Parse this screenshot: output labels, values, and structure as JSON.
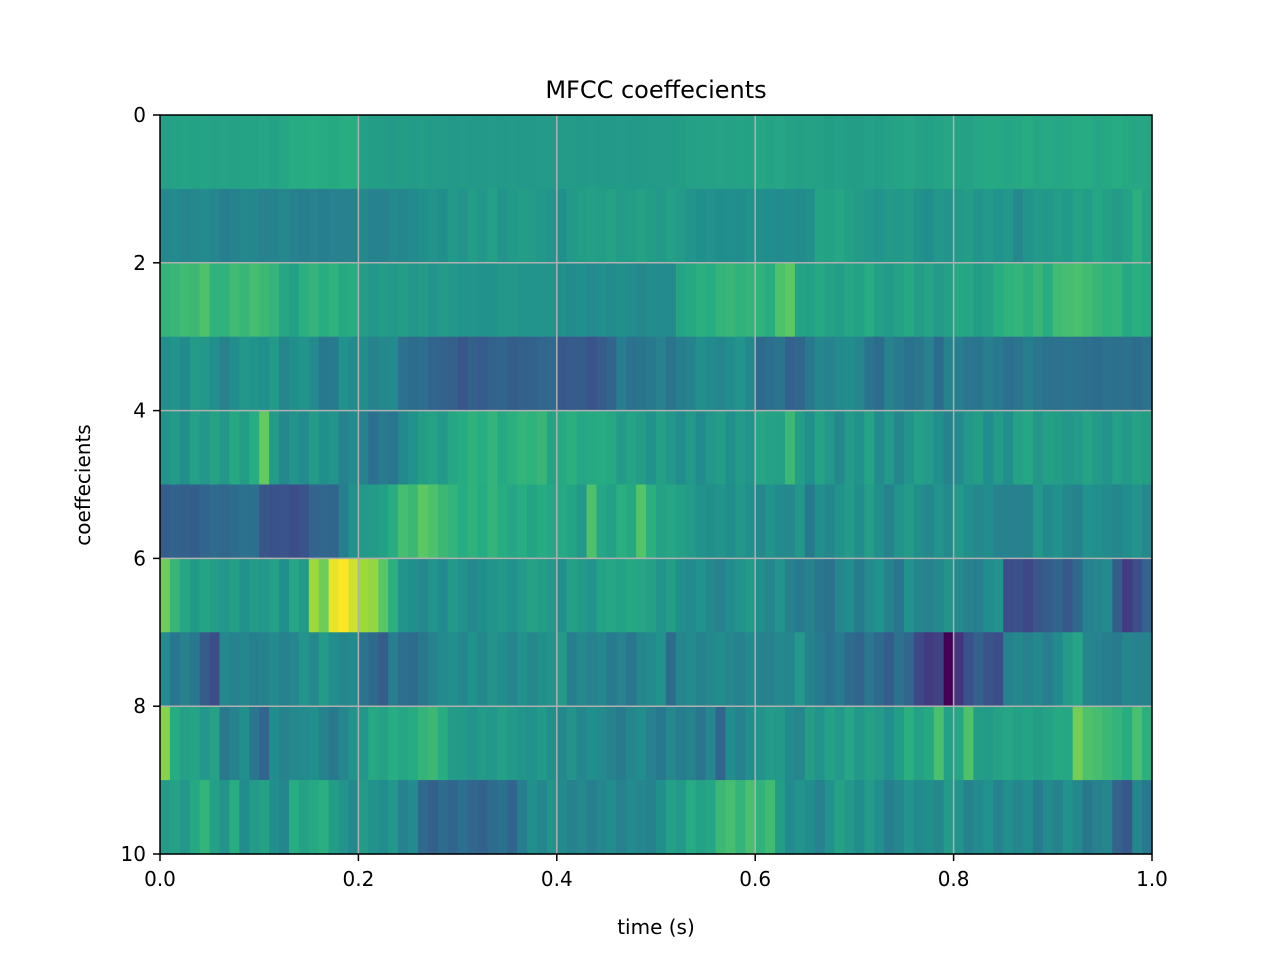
{
  "chart_data": {
    "type": "heatmap",
    "title": "MFCC coeffecients",
    "xlabel": "time (s)",
    "ylabel": "coeffecients",
    "xlim": [
      0.0,
      1.0
    ],
    "ylim": [
      10,
      0
    ],
    "x_ticks": [
      "0.0",
      "0.2",
      "0.4",
      "0.6",
      "0.8",
      "1.0"
    ],
    "y_ticks": [
      "0",
      "2",
      "4",
      "6",
      "8",
      "10"
    ],
    "grid": true,
    "colormap": "viridis",
    "value_range": [
      0,
      1
    ],
    "rows": [
      [
        0.57,
        0.58,
        0.59,
        0.58,
        0.59,
        0.58,
        0.59,
        0.58,
        0.59,
        0.59,
        0.6,
        0.58,
        0.6,
        0.62,
        0.62,
        0.63,
        0.62,
        0.61,
        0.63,
        0.63,
        0.57,
        0.56,
        0.56,
        0.55,
        0.56,
        0.55,
        0.56,
        0.55,
        0.55,
        0.54,
        0.55,
        0.54,
        0.54,
        0.55,
        0.54,
        0.55,
        0.54,
        0.54,
        0.55,
        0.55,
        0.55,
        0.55,
        0.54,
        0.55,
        0.54,
        0.54,
        0.55,
        0.54,
        0.54,
        0.55,
        0.55,
        0.55,
        0.56,
        0.57,
        0.58,
        0.58,
        0.59,
        0.58,
        0.59,
        0.58,
        0.6,
        0.59,
        0.6,
        0.58,
        0.57,
        0.58,
        0.57,
        0.56,
        0.57,
        0.56,
        0.56,
        0.57,
        0.56,
        0.58,
        0.59,
        0.6,
        0.58,
        0.57,
        0.59,
        0.6,
        0.58,
        0.58,
        0.6,
        0.61,
        0.61,
        0.6,
        0.61,
        0.62,
        0.6,
        0.61,
        0.6,
        0.61,
        0.62,
        0.62,
        0.6,
        0.61,
        0.62,
        0.61,
        0.6,
        0.6
      ],
      [
        0.47,
        0.48,
        0.46,
        0.47,
        0.48,
        0.46,
        0.43,
        0.45,
        0.47,
        0.46,
        0.44,
        0.45,
        0.47,
        0.44,
        0.43,
        0.44,
        0.43,
        0.44,
        0.44,
        0.45,
        0.47,
        0.44,
        0.45,
        0.47,
        0.46,
        0.48,
        0.5,
        0.52,
        0.5,
        0.54,
        0.52,
        0.56,
        0.53,
        0.57,
        0.52,
        0.54,
        0.56,
        0.55,
        0.53,
        0.52,
        0.5,
        0.54,
        0.56,
        0.57,
        0.56,
        0.58,
        0.55,
        0.56,
        0.58,
        0.56,
        0.54,
        0.57,
        0.55,
        0.52,
        0.5,
        0.51,
        0.49,
        0.5,
        0.49,
        0.51,
        0.5,
        0.49,
        0.48,
        0.49,
        0.48,
        0.5,
        0.59,
        0.58,
        0.6,
        0.57,
        0.55,
        0.53,
        0.52,
        0.54,
        0.53,
        0.55,
        0.51,
        0.49,
        0.53,
        0.52,
        0.54,
        0.56,
        0.52,
        0.54,
        0.51,
        0.53,
        0.47,
        0.52,
        0.54,
        0.53,
        0.56,
        0.54,
        0.58,
        0.56,
        0.6,
        0.57,
        0.55,
        0.58,
        0.64,
        0.59
      ],
      [
        0.66,
        0.67,
        0.69,
        0.68,
        0.72,
        0.65,
        0.65,
        0.69,
        0.67,
        0.7,
        0.68,
        0.66,
        0.6,
        0.57,
        0.64,
        0.66,
        0.63,
        0.65,
        0.61,
        0.63,
        0.56,
        0.53,
        0.56,
        0.54,
        0.56,
        0.53,
        0.55,
        0.52,
        0.55,
        0.53,
        0.52,
        0.52,
        0.51,
        0.51,
        0.53,
        0.53,
        0.52,
        0.52,
        0.52,
        0.52,
        0.5,
        0.48,
        0.5,
        0.48,
        0.5,
        0.48,
        0.5,
        0.49,
        0.47,
        0.49,
        0.48,
        0.48,
        0.59,
        0.61,
        0.64,
        0.63,
        0.66,
        0.67,
        0.65,
        0.66,
        0.65,
        0.63,
        0.72,
        0.75,
        0.59,
        0.57,
        0.61,
        0.58,
        0.56,
        0.6,
        0.58,
        0.62,
        0.57,
        0.55,
        0.58,
        0.61,
        0.56,
        0.59,
        0.55,
        0.57,
        0.61,
        0.6,
        0.56,
        0.58,
        0.63,
        0.65,
        0.66,
        0.64,
        0.67,
        0.63,
        0.69,
        0.7,
        0.71,
        0.69,
        0.67,
        0.65,
        0.66,
        0.61,
        0.64,
        0.62
      ],
      [
        0.5,
        0.52,
        0.48,
        0.55,
        0.53,
        0.5,
        0.45,
        0.49,
        0.53,
        0.51,
        0.5,
        0.54,
        0.46,
        0.5,
        0.52,
        0.48,
        0.41,
        0.42,
        0.51,
        0.48,
        0.49,
        0.45,
        0.47,
        0.48,
        0.38,
        0.36,
        0.37,
        0.33,
        0.32,
        0.31,
        0.27,
        0.31,
        0.29,
        0.32,
        0.33,
        0.3,
        0.31,
        0.32,
        0.34,
        0.35,
        0.28,
        0.29,
        0.3,
        0.26,
        0.29,
        0.33,
        0.43,
        0.38,
        0.39,
        0.41,
        0.44,
        0.39,
        0.43,
        0.45,
        0.5,
        0.48,
        0.46,
        0.49,
        0.52,
        0.47,
        0.35,
        0.37,
        0.39,
        0.32,
        0.34,
        0.41,
        0.46,
        0.44,
        0.48,
        0.49,
        0.46,
        0.39,
        0.36,
        0.45,
        0.42,
        0.38,
        0.4,
        0.44,
        0.36,
        0.45,
        0.43,
        0.4,
        0.39,
        0.43,
        0.41,
        0.37,
        0.39,
        0.43,
        0.4,
        0.38,
        0.38,
        0.39,
        0.38,
        0.37,
        0.36,
        0.38,
        0.37,
        0.38,
        0.36,
        0.38
      ],
      [
        0.52,
        0.55,
        0.5,
        0.57,
        0.53,
        0.58,
        0.53,
        0.61,
        0.56,
        0.63,
        0.76,
        0.55,
        0.47,
        0.52,
        0.48,
        0.55,
        0.5,
        0.52,
        0.45,
        0.48,
        0.44,
        0.37,
        0.42,
        0.4,
        0.47,
        0.51,
        0.56,
        0.58,
        0.54,
        0.6,
        0.62,
        0.65,
        0.63,
        0.66,
        0.61,
        0.64,
        0.66,
        0.65,
        0.67,
        0.59,
        0.61,
        0.64,
        0.6,
        0.61,
        0.62,
        0.61,
        0.55,
        0.59,
        0.56,
        0.51,
        0.57,
        0.53,
        0.49,
        0.54,
        0.48,
        0.53,
        0.56,
        0.5,
        0.55,
        0.52,
        0.6,
        0.58,
        0.57,
        0.68,
        0.56,
        0.5,
        0.59,
        0.53,
        0.47,
        0.55,
        0.51,
        0.59,
        0.48,
        0.54,
        0.46,
        0.52,
        0.57,
        0.55,
        0.5,
        0.45,
        0.48,
        0.53,
        0.56,
        0.49,
        0.55,
        0.5,
        0.58,
        0.6,
        0.53,
        0.57,
        0.56,
        0.53,
        0.55,
        0.59,
        0.55,
        0.52,
        0.57,
        0.54,
        0.58,
        0.56
      ],
      [
        0.3,
        0.32,
        0.31,
        0.3,
        0.33,
        0.36,
        0.34,
        0.36,
        0.38,
        0.37,
        0.27,
        0.25,
        0.26,
        0.24,
        0.26,
        0.33,
        0.34,
        0.33,
        0.43,
        0.51,
        0.54,
        0.55,
        0.57,
        0.63,
        0.7,
        0.68,
        0.75,
        0.72,
        0.68,
        0.66,
        0.63,
        0.65,
        0.62,
        0.66,
        0.63,
        0.6,
        0.63,
        0.59,
        0.62,
        0.6,
        0.61,
        0.59,
        0.53,
        0.72,
        0.6,
        0.57,
        0.64,
        0.61,
        0.73,
        0.64,
        0.58,
        0.6,
        0.57,
        0.55,
        0.51,
        0.5,
        0.52,
        0.49,
        0.53,
        0.5,
        0.47,
        0.52,
        0.48,
        0.47,
        0.53,
        0.41,
        0.5,
        0.46,
        0.51,
        0.55,
        0.49,
        0.56,
        0.5,
        0.45,
        0.52,
        0.55,
        0.5,
        0.47,
        0.52,
        0.48,
        0.54,
        0.5,
        0.47,
        0.49,
        0.45,
        0.45,
        0.44,
        0.45,
        0.53,
        0.48,
        0.51,
        0.47,
        0.45,
        0.51,
        0.5,
        0.48,
        0.46,
        0.49,
        0.52,
        0.47
      ],
      [
        0.78,
        0.67,
        0.6,
        0.54,
        0.59,
        0.56,
        0.53,
        0.57,
        0.51,
        0.55,
        0.53,
        0.57,
        0.5,
        0.6,
        0.54,
        0.86,
        0.78,
        0.97,
        1.0,
        0.93,
        0.86,
        0.84,
        0.74,
        0.64,
        0.52,
        0.5,
        0.47,
        0.52,
        0.48,
        0.54,
        0.51,
        0.47,
        0.5,
        0.52,
        0.53,
        0.51,
        0.54,
        0.58,
        0.56,
        0.53,
        0.5,
        0.57,
        0.55,
        0.52,
        0.59,
        0.6,
        0.58,
        0.61,
        0.6,
        0.57,
        0.52,
        0.56,
        0.5,
        0.48,
        0.51,
        0.47,
        0.44,
        0.49,
        0.52,
        0.55,
        0.5,
        0.46,
        0.52,
        0.44,
        0.42,
        0.45,
        0.4,
        0.38,
        0.46,
        0.49,
        0.42,
        0.48,
        0.51,
        0.45,
        0.4,
        0.51,
        0.46,
        0.44,
        0.47,
        0.52,
        0.48,
        0.45,
        0.43,
        0.49,
        0.51,
        0.24,
        0.25,
        0.22,
        0.27,
        0.3,
        0.33,
        0.28,
        0.35,
        0.44,
        0.46,
        0.48,
        0.3,
        0.18,
        0.24,
        0.32
      ],
      [
        0.48,
        0.4,
        0.44,
        0.41,
        0.3,
        0.24,
        0.47,
        0.44,
        0.46,
        0.43,
        0.45,
        0.48,
        0.44,
        0.46,
        0.52,
        0.47,
        0.55,
        0.49,
        0.46,
        0.48,
        0.39,
        0.35,
        0.3,
        0.43,
        0.37,
        0.36,
        0.4,
        0.45,
        0.48,
        0.5,
        0.46,
        0.51,
        0.47,
        0.52,
        0.49,
        0.46,
        0.51,
        0.47,
        0.5,
        0.52,
        0.55,
        0.43,
        0.47,
        0.44,
        0.46,
        0.42,
        0.44,
        0.4,
        0.46,
        0.48,
        0.51,
        0.36,
        0.46,
        0.48,
        0.45,
        0.47,
        0.49,
        0.46,
        0.44,
        0.48,
        0.45,
        0.44,
        0.47,
        0.46,
        0.54,
        0.45,
        0.42,
        0.38,
        0.42,
        0.36,
        0.33,
        0.4,
        0.35,
        0.3,
        0.38,
        0.34,
        0.22,
        0.18,
        0.2,
        0.0,
        0.16,
        0.25,
        0.32,
        0.26,
        0.24,
        0.45,
        0.47,
        0.44,
        0.47,
        0.43,
        0.48,
        0.55,
        0.6,
        0.46,
        0.44,
        0.43,
        0.42,
        0.46,
        0.44,
        0.45
      ],
      [
        0.82,
        0.62,
        0.57,
        0.59,
        0.53,
        0.58,
        0.41,
        0.45,
        0.5,
        0.4,
        0.33,
        0.49,
        0.45,
        0.47,
        0.48,
        0.5,
        0.45,
        0.41,
        0.46,
        0.52,
        0.53,
        0.61,
        0.58,
        0.63,
        0.6,
        0.62,
        0.66,
        0.68,
        0.63,
        0.55,
        0.54,
        0.52,
        0.55,
        0.53,
        0.57,
        0.54,
        0.52,
        0.51,
        0.54,
        0.5,
        0.47,
        0.52,
        0.46,
        0.5,
        0.48,
        0.45,
        0.42,
        0.46,
        0.49,
        0.44,
        0.41,
        0.47,
        0.43,
        0.45,
        0.4,
        0.46,
        0.33,
        0.49,
        0.45,
        0.5,
        0.52,
        0.55,
        0.54,
        0.48,
        0.46,
        0.56,
        0.52,
        0.58,
        0.54,
        0.6,
        0.53,
        0.57,
        0.55,
        0.5,
        0.56,
        0.64,
        0.58,
        0.61,
        0.71,
        0.57,
        0.6,
        0.72,
        0.56,
        0.55,
        0.58,
        0.6,
        0.57,
        0.59,
        0.56,
        0.58,
        0.61,
        0.6,
        0.79,
        0.72,
        0.7,
        0.68,
        0.66,
        0.63,
        0.71,
        0.64
      ],
      [
        0.55,
        0.58,
        0.53,
        0.61,
        0.66,
        0.57,
        0.52,
        0.63,
        0.49,
        0.55,
        0.58,
        0.5,
        0.46,
        0.63,
        0.58,
        0.61,
        0.64,
        0.56,
        0.52,
        0.47,
        0.55,
        0.51,
        0.49,
        0.53,
        0.44,
        0.48,
        0.35,
        0.31,
        0.36,
        0.33,
        0.37,
        0.34,
        0.32,
        0.36,
        0.38,
        0.33,
        0.43,
        0.5,
        0.46,
        0.52,
        0.48,
        0.45,
        0.47,
        0.43,
        0.46,
        0.49,
        0.44,
        0.48,
        0.46,
        0.45,
        0.5,
        0.57,
        0.54,
        0.62,
        0.58,
        0.6,
        0.68,
        0.7,
        0.66,
        0.71,
        0.65,
        0.69,
        0.56,
        0.48,
        0.52,
        0.49,
        0.44,
        0.51,
        0.58,
        0.53,
        0.49,
        0.55,
        0.5,
        0.43,
        0.46,
        0.52,
        0.48,
        0.5,
        0.47,
        0.55,
        0.52,
        0.45,
        0.48,
        0.51,
        0.44,
        0.5,
        0.46,
        0.49,
        0.42,
        0.48,
        0.45,
        0.51,
        0.47,
        0.41,
        0.44,
        0.46,
        0.32,
        0.28,
        0.46,
        0.41
      ]
    ]
  }
}
